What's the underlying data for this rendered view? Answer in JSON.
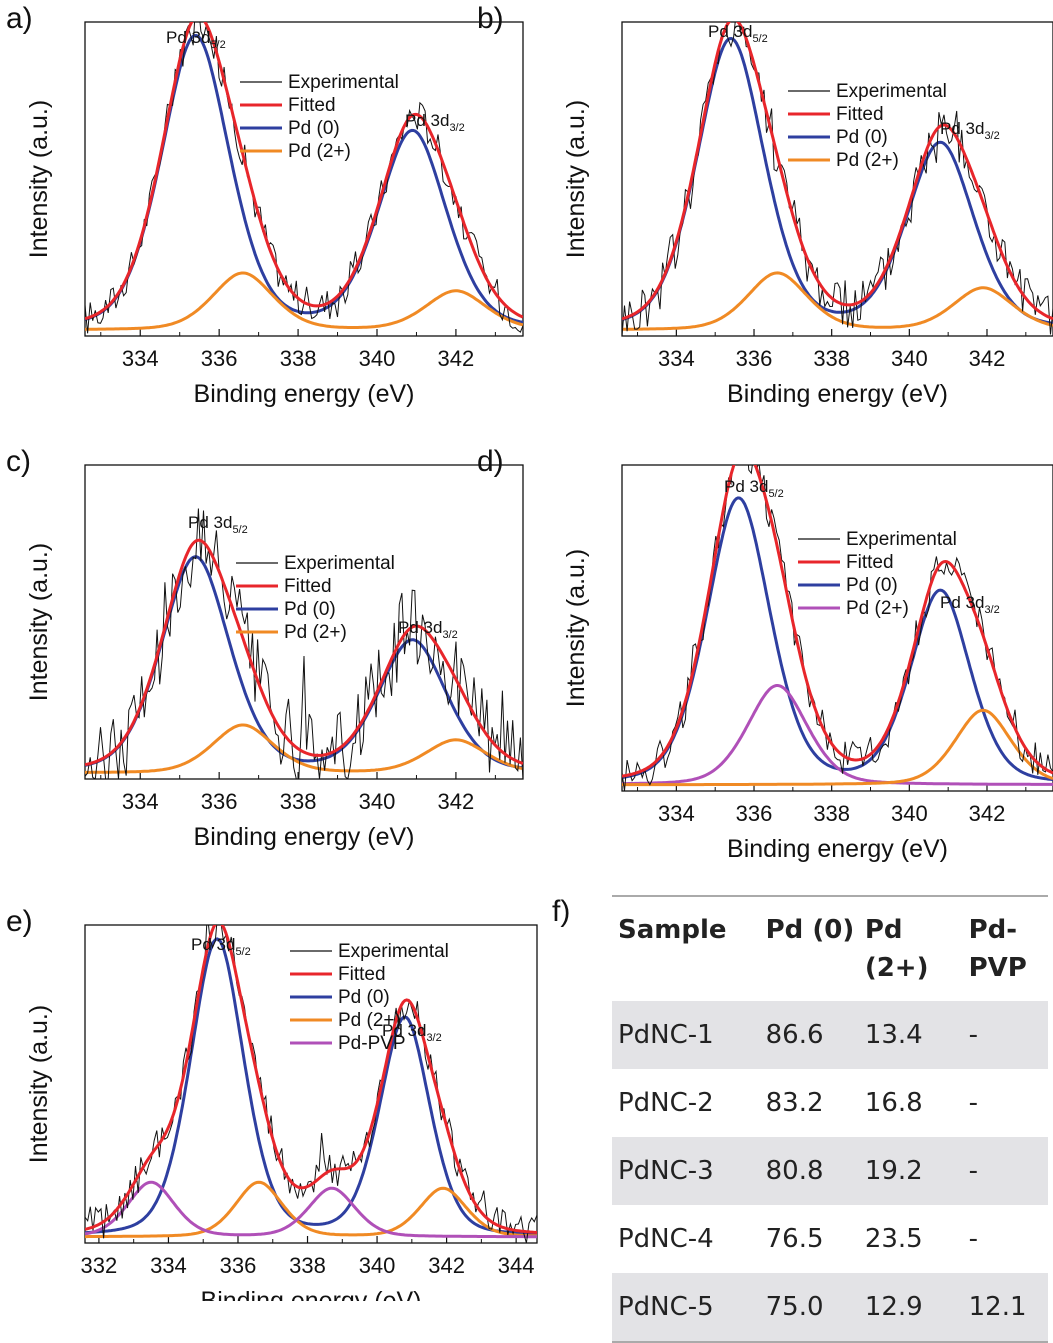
{
  "figure": {
    "xlabel": "Binding energy (eV)",
    "ylabel": "Intensity (a.u.)",
    "peak_labels": {
      "main": "Pd 3d",
      "main_sub": "5/2",
      "second": "Pd 3d",
      "second_sub": "3/2"
    },
    "colors": {
      "experimental": "#111111",
      "fitted": "#e8262b",
      "pd0": "#2e3fa0",
      "pd2": "#f08a24",
      "pdpvp": "#b050b8"
    }
  },
  "table": {
    "panel_label": "f)",
    "headers": [
      "Sample",
      "Pd (0)",
      "Pd (2+)",
      "Pd-PVP"
    ],
    "rows": [
      [
        "PdNC-1",
        "86.6",
        "13.4",
        "-"
      ],
      [
        "PdNC-2",
        "83.2",
        "16.8",
        "-"
      ],
      [
        "PdNC-3",
        "80.8",
        "19.2",
        "-"
      ],
      [
        "PdNC-4",
        "76.5",
        "23.5",
        "-"
      ],
      [
        "PdNC-5",
        "75.0",
        "12.9",
        "12.1"
      ]
    ]
  },
  "chart_data": [
    {
      "type": "line",
      "panel": "a)",
      "xlim": [
        332.6,
        343.7
      ],
      "ylim": [
        0,
        1.05
      ],
      "xticks": [
        334,
        336,
        338,
        340,
        342
      ],
      "legend_position": "top-center",
      "series": [
        {
          "name": "Experimental",
          "color": "#111111",
          "kind": "noisy"
        },
        {
          "name": "Fitted",
          "color": "#e8262b",
          "kind": "sum"
        },
        {
          "name": "Pd (0)",
          "color": "#2e3fa0",
          "peaks": [
            [
              335.4,
              0.98,
              0.9
            ],
            [
              340.9,
              0.66,
              0.9
            ]
          ]
        },
        {
          "name": "Pd (2+)",
          "color": "#f08a24",
          "peaks": [
            [
              336.6,
              0.19,
              0.8
            ],
            [
              342.0,
              0.13,
              0.8
            ]
          ]
        }
      ]
    },
    {
      "type": "line",
      "panel": "b)",
      "xlim": [
        332.6,
        343.7
      ],
      "ylim": [
        0,
        1.05
      ],
      "xticks": [
        334,
        336,
        338,
        340,
        342
      ],
      "legend_position": "top-center",
      "series": [
        {
          "name": "Experimental",
          "color": "#111111",
          "kind": "noisy"
        },
        {
          "name": "Fitted",
          "color": "#e8262b",
          "kind": "sum"
        },
        {
          "name": "Pd (0)",
          "color": "#2e3fa0",
          "peaks": [
            [
              335.4,
              0.97,
              0.9
            ],
            [
              340.8,
              0.62,
              0.9
            ]
          ]
        },
        {
          "name": "Pd (2+)",
          "color": "#f08a24",
          "peaks": [
            [
              336.6,
              0.19,
              0.8
            ],
            [
              341.9,
              0.14,
              0.8
            ]
          ]
        }
      ]
    },
    {
      "type": "line",
      "panel": "c)",
      "xlim": [
        332.6,
        343.7
      ],
      "ylim": [
        0,
        1.05
      ],
      "xticks": [
        334,
        336,
        338,
        340,
        342
      ],
      "legend_position": "top-center",
      "series": [
        {
          "name": "Experimental",
          "color": "#111111",
          "kind": "noisy"
        },
        {
          "name": "Fitted",
          "color": "#e8262b",
          "kind": "sum"
        },
        {
          "name": "Pd (0)",
          "color": "#2e3fa0",
          "peaks": [
            [
              335.4,
              0.72,
              0.9
            ],
            [
              340.9,
              0.44,
              0.9
            ]
          ]
        },
        {
          "name": "Pd (2+)",
          "color": "#f08a24",
          "peaks": [
            [
              336.6,
              0.16,
              0.8
            ],
            [
              342.0,
              0.11,
              0.8
            ]
          ]
        }
      ]
    },
    {
      "type": "line",
      "panel": "d)",
      "xlim": [
        332.6,
        343.7
      ],
      "ylim": [
        0,
        1.05
      ],
      "xticks": [
        334,
        336,
        338,
        340,
        342
      ],
      "legend_position": "top-right",
      "series": [
        {
          "name": "Experimental",
          "color": "#111111",
          "kind": "noisy"
        },
        {
          "name": "Fitted",
          "color": "#e8262b",
          "kind": "sum"
        },
        {
          "name": "Pd (0)",
          "color": "#2e3fa0",
          "peaks": [
            [
              335.6,
              0.92,
              0.85
            ],
            [
              340.8,
              0.62,
              0.8
            ]
          ]
        },
        {
          "name": "Pd (2+)",
          "color": "#b050b8",
          "peaks": [
            [
              336.6,
              0.32,
              0.8
            ]
          ]
        },
        {
          "name": "",
          "color": "#f08a24",
          "peaks": [
            [
              341.9,
              0.24,
              0.75
            ]
          ]
        }
      ]
    },
    {
      "type": "line",
      "panel": "e)",
      "xlim": [
        331.6,
        344.6
      ],
      "ylim": [
        0,
        1.05
      ],
      "xticks": [
        332,
        334,
        336,
        338,
        340,
        342,
        344
      ],
      "legend_position": "top-right",
      "series": [
        {
          "name": "Experimental",
          "color": "#111111",
          "kind": "noisy"
        },
        {
          "name": "Fitted",
          "color": "#e8262b",
          "kind": "sum"
        },
        {
          "name": "Pd (0)",
          "color": "#2e3fa0",
          "peaks": [
            [
              335.4,
              0.98,
              0.8
            ],
            [
              340.8,
              0.72,
              0.75
            ]
          ]
        },
        {
          "name": "Pd (2+)",
          "color": "#f08a24",
          "peaks": [
            [
              336.6,
              0.18,
              0.7
            ],
            [
              341.9,
              0.16,
              0.7
            ]
          ]
        },
        {
          "name": "Pd-PVP",
          "color": "#b050b8",
          "peaks": [
            [
              333.5,
              0.18,
              0.7
            ],
            [
              338.7,
              0.16,
              0.7
            ]
          ]
        }
      ]
    }
  ]
}
